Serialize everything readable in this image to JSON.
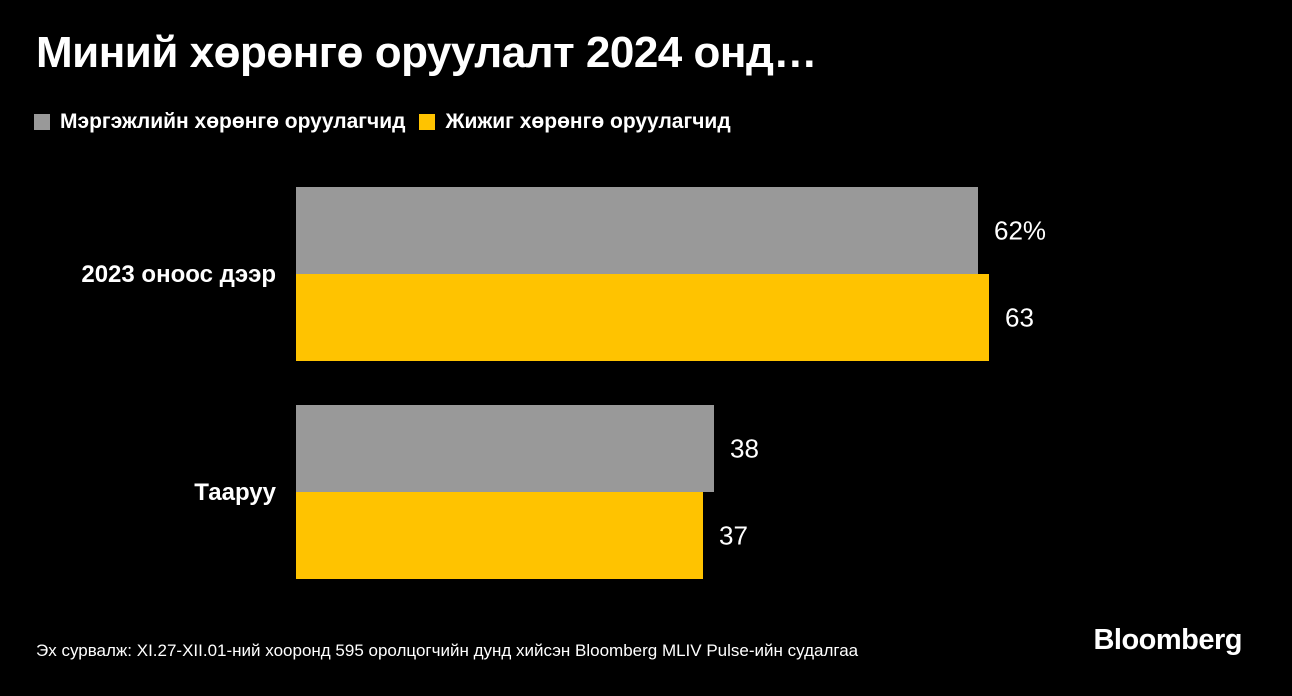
{
  "title": "Миний хөрөнгө оруулалт 2024 онд…",
  "colors": {
    "background": "#000000",
    "professional": "#999999",
    "small": "#ffc300",
    "text": "#ffffff"
  },
  "chart_data": {
    "type": "bar",
    "orientation": "horizontal",
    "categories": [
      "2023 оноос дээр",
      "Тааруу"
    ],
    "series": [
      {
        "name": "Мэргэжлийн хөрөнгө оруулагчид",
        "color": "#999999",
        "values": [
          62,
          38
        ],
        "labels": [
          "62%",
          "38"
        ]
      },
      {
        "name": "Жижиг хөрөнгө оруулагчид",
        "color": "#ffc300",
        "values": [
          63,
          37
        ],
        "labels": [
          "63",
          "37"
        ]
      }
    ],
    "xlim": [
      0,
      100
    ],
    "grid": false,
    "legend_position": "top-left"
  },
  "source": "Эх сурвалж: XI.27-XII.01-ний хооронд 595 оролцогчийн дунд хийсэн Bloomberg MLIV Pulse-ийн судалгаа",
  "brand": "Bloomberg"
}
